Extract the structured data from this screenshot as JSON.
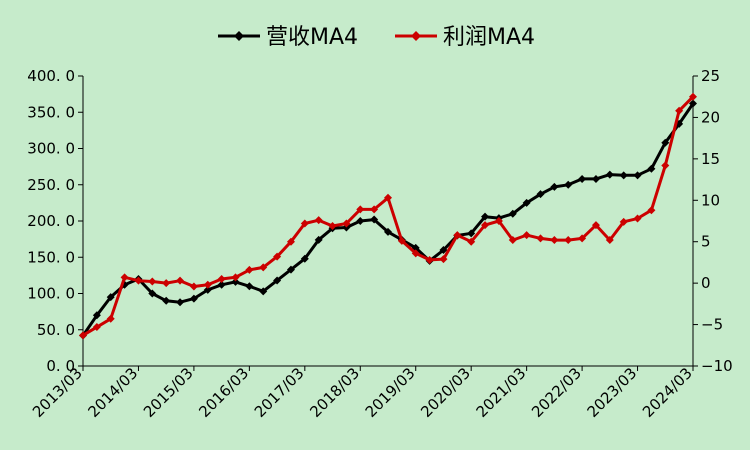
{
  "chart_data": {
    "type": "line",
    "title": "",
    "legend_position": "top",
    "grid": false,
    "x_ticks": [
      "2013/03",
      "2014/03",
      "2015/03",
      "2016/03",
      "2017/03",
      "2018/03",
      "2019/03",
      "2020/03",
      "2021/03",
      "2022/03",
      "2023/03",
      "2024/03"
    ],
    "y_left": {
      "min": 0,
      "max": 400,
      "step": 50,
      "tick_labels": [
        "0. 0",
        "50. 0",
        "100. 0",
        "150. 0",
        "200. 0",
        "250. 0",
        "300. 0",
        "350. 0",
        "400. 0"
      ]
    },
    "y_right": {
      "min": -10,
      "max": 25,
      "step": 5,
      "tick_labels": [
        "−10",
        "−5",
        "0",
        "5",
        "10",
        "15",
        "20",
        "25"
      ]
    },
    "series": [
      {
        "name": "营收MA4",
        "axis": "left",
        "color": "#000000",
        "values": [
          42,
          70,
          95,
          112,
          120,
          100,
          90,
          88,
          93,
          105,
          112,
          116,
          110,
          103,
          118,
          133,
          148,
          174,
          190,
          191,
          200,
          202,
          185,
          174,
          163,
          145,
          160,
          180,
          183,
          206,
          204,
          210,
          225,
          237,
          247,
          250,
          258,
          258,
          264,
          263,
          263,
          272,
          308,
          334,
          362
        ]
      },
      {
        "name": "利润MA4",
        "axis": "right",
        "color": "#cc0000",
        "values": [
          -6.3,
          -5.3,
          -4.3,
          0.7,
          0.3,
          0.2,
          0,
          0.3,
          -0.4,
          -0.2,
          0.5,
          0.7,
          1.6,
          1.9,
          3.2,
          5.0,
          7.2,
          7.6,
          6.9,
          7.2,
          8.9,
          8.9,
          10.3,
          5.1,
          3.6,
          2.8,
          2.9,
          5.8,
          5.0,
          7.0,
          7.5,
          5.2,
          5.8,
          5.4,
          5.2,
          5.2,
          5.4,
          7.0,
          5.2,
          7.4,
          7.8,
          8.8,
          14.2,
          20.8,
          22.5
        ]
      }
    ]
  }
}
